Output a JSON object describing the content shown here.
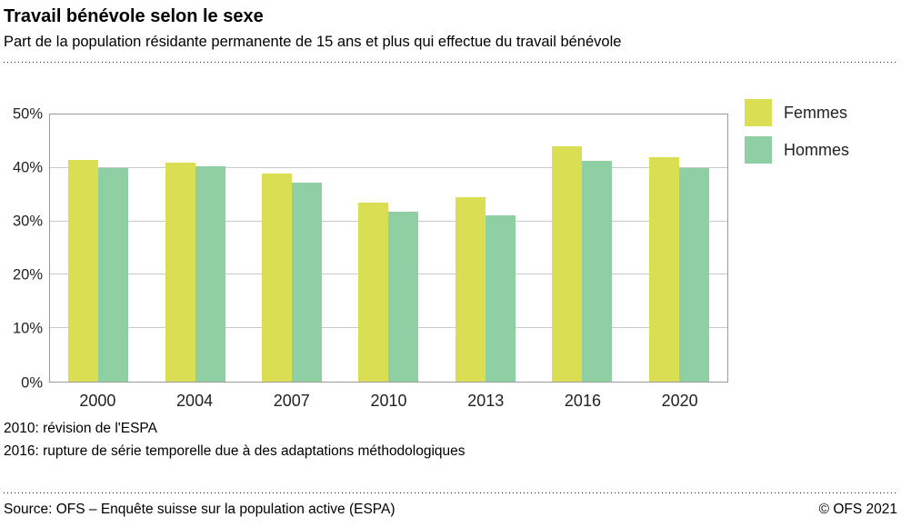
{
  "header": {
    "title": "Travail bénévole selon le sexe",
    "subtitle": "Part de la population résidante permanente de 15 ans et plus qui effectue du travail bénévole"
  },
  "chart_data": {
    "type": "bar",
    "title": "Travail bénévole selon le sexe",
    "subtitle": "Part de la population résidante permanente de 15 ans et plus qui effectue du travail bénévole",
    "categories": [
      "2000",
      "2004",
      "2007",
      "2010",
      "2013",
      "2016",
      "2020"
    ],
    "series": [
      {
        "name": "Femmes",
        "color": "#d9de52",
        "values": [
          41.5,
          41.0,
          39.0,
          33.5,
          34.5,
          44.0,
          42.0
        ]
      },
      {
        "name": "Hommes",
        "color": "#8ecfa4",
        "values": [
          40.0,
          40.3,
          37.3,
          31.8,
          31.2,
          41.3,
          40.0
        ]
      }
    ],
    "ylim": [
      0,
      50
    ],
    "ytick_step": 10,
    "ytick_suffix": "%",
    "grid": true,
    "legend_position": "top-right",
    "unit": "%"
  },
  "footnotes": [
    "2010: révision de l'ESPA",
    "2016: rupture de série temporelle due à des adaptations méthodologiques"
  ],
  "footer": {
    "source": "Source: OFS – Enquête suisse sur la population active (ESPA)",
    "copyright": "© OFS 2021"
  }
}
